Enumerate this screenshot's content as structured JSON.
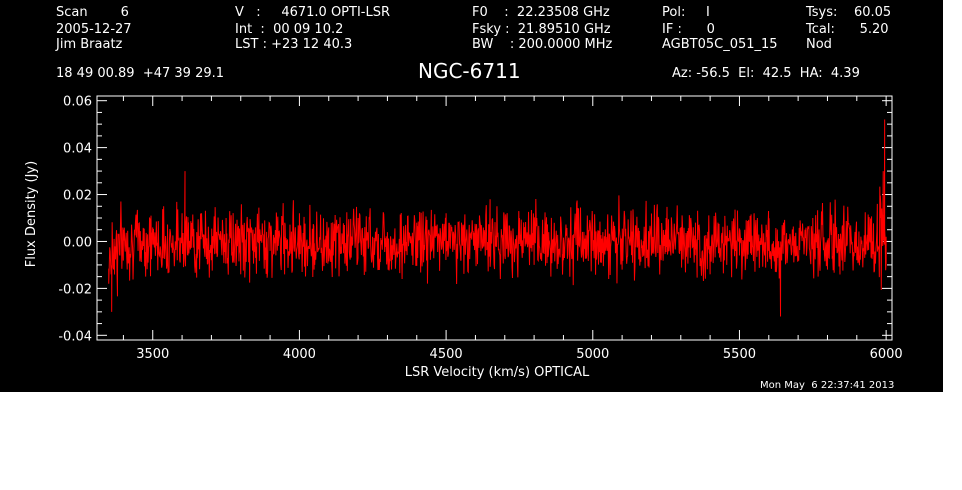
{
  "header": {
    "col1": [
      "Scan        6",
      "2005-12-27",
      "Jim Braatz"
    ],
    "col2": [
      "V   :     4671.0 OPTI-LSR",
      "Int  :  00 09 10.2",
      "LST : +23 12 40.3"
    ],
    "col3": [
      "F0    :  22.23508 GHz",
      "Fsky :  21.89510 GHz",
      "BW    : 200.0000 MHz"
    ],
    "col4": [
      "Pol:     I",
      "IF :      0",
      "AGBT05C_051_15"
    ],
    "col5": [
      "Tsys:    60.05",
      "Tcal:      5.20",
      "Nod"
    ],
    "coords": "18 49 00.89  +47 39 29.1",
    "source": "NGC-6711",
    "azel": "Az: -56.5  El:  42.5  HA:  4.39",
    "timestamp": "Mon May  6 22:37:41 2013"
  },
  "colors": {
    "background": "#000000",
    "axes": "#ffffff",
    "series": "#ff0000"
  },
  "chart_data": {
    "type": "line",
    "title": "NGC-6711",
    "xlabel": "LSR Velocity (km/s) OPTICAL",
    "ylabel": "Flux Density (Jy)",
    "xlim": [
      3310,
      6020
    ],
    "ylim": [
      -0.042,
      0.062
    ],
    "xticks": [
      3500,
      4000,
      4500,
      5000,
      5500,
      6000
    ],
    "yticks": [
      -0.04,
      -0.02,
      0.0,
      0.02,
      0.04,
      0.06
    ],
    "ytick_labels": [
      "-0.04",
      "-0.02",
      "0.00",
      "0.02",
      "0.04",
      "0.06"
    ],
    "grid": false,
    "series": [
      {
        "color": "#ff0000",
        "x": [
          3350,
          3360,
          3370,
          3380,
          3400,
          3450,
          3500,
          3550,
          3600,
          3610,
          3620,
          3650,
          3700,
          3750,
          3800,
          3850,
          3900,
          3950,
          4000,
          4050,
          4100,
          4150,
          4200,
          4250,
          4300,
          4350,
          4400,
          4450,
          4500,
          4550,
          4600,
          4650,
          4700,
          4750,
          4800,
          4850,
          4900,
          4950,
          5000,
          5050,
          5100,
          5150,
          5200,
          5250,
          5300,
          5350,
          5400,
          5450,
          5500,
          5550,
          5600,
          5640,
          5650,
          5700,
          5750,
          5800,
          5850,
          5900,
          5950,
          5970,
          5980,
          5990,
          5995,
          6000
        ],
        "y": [
          -0.018,
          -0.03,
          -0.008,
          -0.012,
          0.005,
          -0.004,
          0.006,
          -0.01,
          0.012,
          0.03,
          -0.006,
          0.004,
          -0.008,
          0.01,
          -0.014,
          0.006,
          -0.004,
          0.008,
          0.012,
          -0.012,
          0.006,
          -0.005,
          0.01,
          -0.006,
          0.004,
          -0.016,
          0.008,
          -0.004,
          0.012,
          -0.008,
          0.006,
          0.018,
          -0.006,
          0.01,
          -0.01,
          0.004,
          -0.008,
          0.014,
          -0.004,
          0.008,
          -0.012,
          0.006,
          -0.006,
          0.01,
          -0.004,
          0.008,
          -0.014,
          0.006,
          -0.006,
          0.012,
          -0.004,
          -0.032,
          0.008,
          -0.006,
          0.01,
          -0.012,
          0.006,
          -0.008,
          0.004,
          0.016,
          0.01,
          0.03,
          0.052,
          0.002
        ]
      }
    ]
  }
}
